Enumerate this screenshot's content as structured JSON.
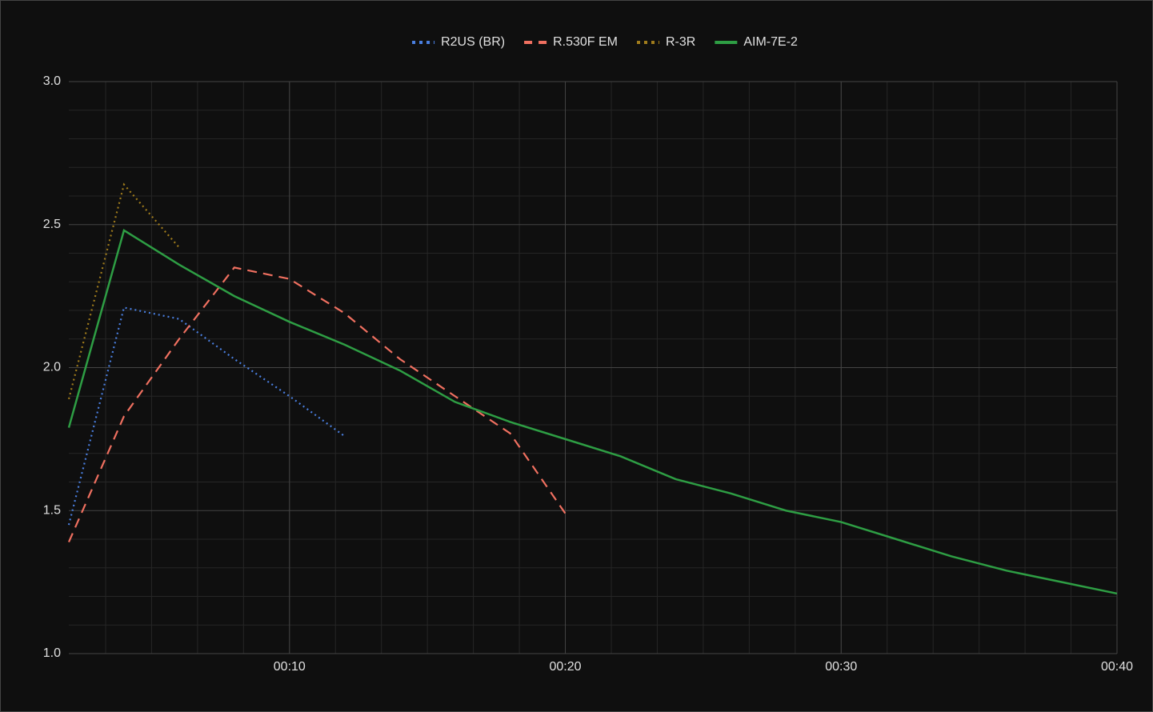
{
  "chart_data": {
    "type": "line",
    "x": [
      2,
      4,
      6,
      8,
      10,
      12,
      14,
      16,
      18,
      20,
      22,
      24,
      26,
      28,
      30,
      32,
      34,
      36,
      38,
      40
    ],
    "series": [
      {
        "name": "R2US (BR)",
        "color": "#4a7fe0",
        "style": "dotted",
        "values": [
          1.45,
          2.21,
          2.17,
          2.03,
          1.9,
          1.76,
          null,
          null,
          null,
          null,
          null,
          null,
          null,
          null,
          null,
          null,
          null,
          null,
          null,
          null
        ]
      },
      {
        "name": "R.530F EM",
        "color": "#f07060",
        "style": "dashed",
        "values": [
          1.39,
          1.83,
          2.1,
          2.35,
          2.31,
          2.19,
          2.03,
          1.9,
          1.77,
          1.49,
          null,
          null,
          null,
          null,
          null,
          null,
          null,
          null,
          null,
          null
        ]
      },
      {
        "name": "R-3R",
        "color": "#a07c1c",
        "style": "dotted",
        "values": [
          1.89,
          2.64,
          2.42,
          null,
          null,
          null,
          null,
          null,
          null,
          null,
          null,
          null,
          null,
          null,
          null,
          null,
          null,
          null,
          null,
          null
        ]
      },
      {
        "name": "AIM-7E-2",
        "color": "#2e9e44",
        "style": "solid",
        "values": [
          1.79,
          2.48,
          2.36,
          2.25,
          2.16,
          2.08,
          1.99,
          1.88,
          1.81,
          1.75,
          1.69,
          1.61,
          1.56,
          1.5,
          1.46,
          1.4,
          1.34,
          1.29,
          1.25,
          1.21
        ]
      }
    ],
    "xlim": [
      2,
      40
    ],
    "xticks": [
      {
        "value": 10,
        "label": "00:10"
      },
      {
        "value": 20,
        "label": "00:20"
      },
      {
        "value": 30,
        "label": "00:30"
      },
      {
        "value": 40,
        "label": "00:40"
      }
    ],
    "ylim": [
      1.0,
      3.0
    ],
    "yticks": [
      {
        "value": 1.0,
        "label": "1.0"
      },
      {
        "value": 1.5,
        "label": "1.5"
      },
      {
        "value": 2.0,
        "label": "2.0"
      },
      {
        "value": 2.5,
        "label": "2.5"
      },
      {
        "value": 3.0,
        "label": "3.0"
      }
    ],
    "grid": true,
    "legend": "top"
  }
}
